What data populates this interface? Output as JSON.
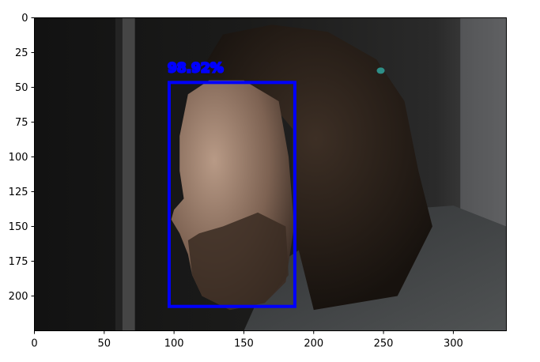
{
  "chart_data": {
    "type": "image",
    "x": {
      "range": [
        0,
        338
      ],
      "ticks": [
        0,
        50,
        100,
        150,
        200,
        250,
        300
      ]
    },
    "y": {
      "range": [
        0,
        225
      ],
      "inverted": true,
      "ticks": [
        0,
        25,
        50,
        75,
        100,
        125,
        150,
        175,
        200
      ]
    },
    "image_content": "photo-man-profile-portrait",
    "detections": [
      {
        "label": "98.92%",
        "box": {
          "x0": 96.5,
          "y0": 46.5,
          "x1": 186.5,
          "y1": 207.5
        },
        "color": "#0000ff"
      }
    ],
    "grid": false
  },
  "colors": {
    "detection": "#0000ff",
    "axis": "#000000",
    "background": "#ffffff"
  }
}
